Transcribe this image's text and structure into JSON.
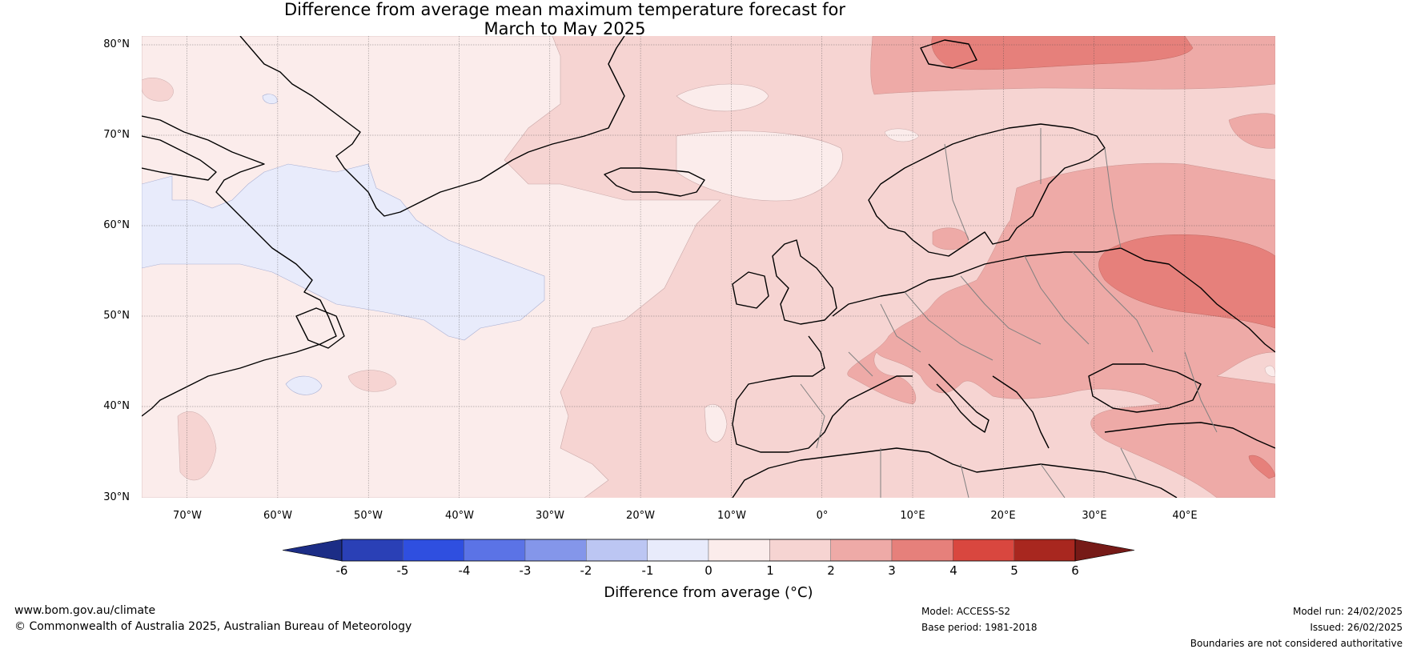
{
  "title": {
    "line1": "Difference from average mean maximum temperature forecast for",
    "line2": "March to May 2025"
  },
  "map": {
    "lat_labels": [
      "80°N",
      "70°N",
      "60°N",
      "50°N",
      "40°N",
      "30°N"
    ],
    "lon_labels": [
      "70°W",
      "60°W",
      "50°W",
      "40°W",
      "30°W",
      "20°W",
      "10°W",
      "0°",
      "10°E",
      "20°E",
      "30°E",
      "40°E"
    ],
    "extent": {
      "lon_min": -75,
      "lon_max": 50,
      "lat_min": 30,
      "lat_max": 81
    }
  },
  "colorbar": {
    "ticks": [
      "-6",
      "-5",
      "-4",
      "-3",
      "-2",
      "-1",
      "0",
      "1",
      "2",
      "3",
      "4",
      "5",
      "6"
    ],
    "colors": [
      "#1c2d86",
      "#2a40b6",
      "#2f4fe0",
      "#5b73e6",
      "#8496ea",
      "#bcc6f3",
      "#e8ebfb",
      "#fbeceb",
      "#f6d4d2",
      "#eeaaa7",
      "#e6807b",
      "#d9473f",
      "#a8271f",
      "#761a17"
    ],
    "label": "Difference from average (°C)"
  },
  "footer": {
    "website": "www.bom.gov.au/climate",
    "copyright": "© Commonwealth of Australia 2025, Australian Bureau of Meteorology",
    "model": "Model: ACCESS-S2",
    "base_period": "Base period: 1981-2018",
    "model_run": "Model run: 24/02/2025",
    "issued": "Issued: 26/02/2025",
    "disclaimer": "Boundaries are not considered authoritative"
  }
}
